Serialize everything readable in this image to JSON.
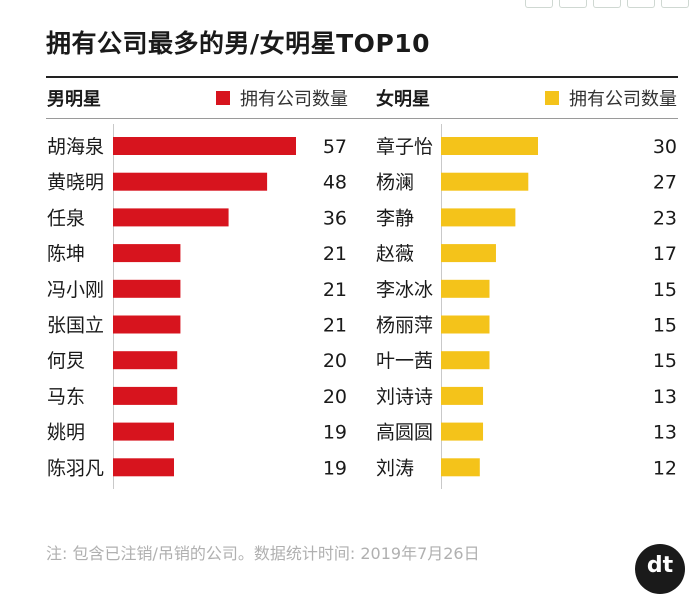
{
  "title": "拥有公司最多的男/女明星TOP10",
  "note": "注: 包含已注销/吊销的公司。数据统计时间: 2019年7月26日",
  "logo_text": "dt",
  "colors": {
    "male": "#d7141e",
    "female": "#f4c31a",
    "text": "#1a1a1a",
    "note": "#b0b0b0"
  },
  "chart_data": [
    {
      "type": "bar",
      "orientation": "horizontal",
      "panel_label": "男明星",
      "legend": "拥有公司数量",
      "categories": [
        "胡海泉",
        "黄晓明",
        "任泉",
        "陈坤",
        "冯小刚",
        "张国立",
        "何炅",
        "马东",
        "姚明",
        "陈羽凡"
      ],
      "values": [
        57,
        48,
        36,
        21,
        21,
        21,
        20,
        20,
        19,
        19
      ],
      "xlim": [
        0,
        57
      ]
    },
    {
      "type": "bar",
      "orientation": "horizontal",
      "panel_label": "女明星",
      "legend": "拥有公司数量",
      "categories": [
        "章子怡",
        "杨澜",
        "李静",
        "赵薇",
        "李冰冰",
        "杨丽萍",
        "叶一茜",
        "刘诗诗",
        "高圆圆",
        "刘涛"
      ],
      "values": [
        30,
        27,
        23,
        17,
        15,
        15,
        15,
        13,
        13,
        12
      ],
      "xlim": [
        0,
        30
      ]
    }
  ]
}
